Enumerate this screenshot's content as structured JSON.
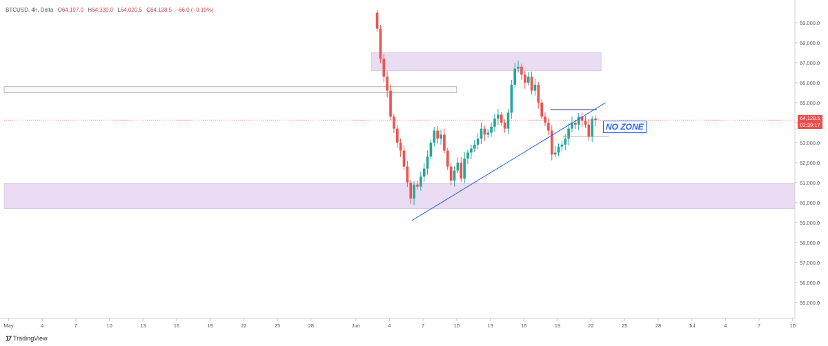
{
  "legend": {
    "symbol": "BTCUSD, 4h, Delta",
    "open_label": "O",
    "open": "64,197.0",
    "high_label": "H",
    "high": "64,339.0",
    "low_label": "L",
    "low": "64,020.5",
    "close_label": "C",
    "close": "64,128.5",
    "change": "−66.0 (−0.10%)"
  },
  "price_tag": {
    "price": "64,128.5",
    "countdown": "02:39:17"
  },
  "annotation": {
    "text": "NO ZONE"
  },
  "footer": {
    "logo": "17",
    "brand": "TradingView"
  },
  "colors": {
    "up": "#26a69a",
    "down": "#ef5350",
    "zone": "#e9dcf3",
    "trendline": "#2962ff",
    "price_tag": "#ef4d4d"
  },
  "chart_data": {
    "type": "candlestick",
    "symbol": "BTCUSD",
    "interval": "4h",
    "y_axis": {
      "ticks": [
        55000,
        56000,
        57000,
        58000,
        59000,
        60000,
        61000,
        62000,
        63000,
        64000,
        65000,
        66000,
        67000,
        68000,
        69000
      ],
      "tick_labels": [
        "55,000.0",
        "56,000.0",
        "57,000.0",
        "58,000.0",
        "59,000.0",
        "60,000.0",
        "61,000.0",
        "62,000.0",
        "63,000.0",
        "64,000.0",
        "65,000.0",
        "66,000.0",
        "67,000.0",
        "68,000.0",
        "69,000.0"
      ],
      "ylim": [
        54200,
        70000
      ]
    },
    "x_axis": {
      "ticks": [
        {
          "label": "May",
          "day": 0
        },
        {
          "label": "4",
          "day": 3
        },
        {
          "label": "7",
          "day": 6
        },
        {
          "label": "10",
          "day": 9
        },
        {
          "label": "13",
          "day": 12
        },
        {
          "label": "16",
          "day": 15
        },
        {
          "label": "19",
          "day": 18
        },
        {
          "label": "22",
          "day": 21
        },
        {
          "label": "25",
          "day": 24
        },
        {
          "label": "28",
          "day": 27
        },
        {
          "label": "Jun",
          "day": 31
        },
        {
          "label": "4",
          "day": 34
        },
        {
          "label": "7",
          "day": 37
        },
        {
          "label": "10",
          "day": 40
        },
        {
          "label": "13",
          "day": 43
        },
        {
          "label": "16",
          "day": 46
        },
        {
          "label": "19",
          "day": 49
        },
        {
          "label": "22",
          "day": 52
        },
        {
          "label": "25",
          "day": 55
        },
        {
          "label": "28",
          "day": 58
        },
        {
          "label": "Jul",
          "day": 61
        },
        {
          "label": "4",
          "day": 64
        },
        {
          "label": "7",
          "day": 67
        },
        {
          "label": "10",
          "day": 70
        }
      ],
      "xlim_days": [
        -0.4,
        70.2
      ]
    },
    "current_price": 64128.5,
    "closes": [
      [
        32.5,
        69500
      ],
      [
        32.9,
        68700
      ],
      [
        33.2,
        67200
      ],
      [
        33.5,
        66300
      ],
      [
        33.8,
        65600
      ],
      [
        34.1,
        64300
      ],
      [
        34.4,
        63700
      ],
      [
        34.7,
        63000
      ],
      [
        35.0,
        62600
      ],
      [
        35.3,
        61800
      ],
      [
        35.6,
        61000
      ],
      [
        35.9,
        60200
      ],
      [
        36.2,
        60900
      ],
      [
        36.5,
        60800
      ],
      [
        36.8,
        61300
      ],
      [
        37.1,
        61700
      ],
      [
        37.4,
        62300
      ],
      [
        37.7,
        63000
      ],
      [
        38.0,
        63600
      ],
      [
        38.3,
        63200
      ],
      [
        38.6,
        63400
      ],
      [
        38.9,
        62600
      ],
      [
        39.2,
        61800
      ],
      [
        39.5,
        61100
      ],
      [
        39.8,
        61600
      ],
      [
        40.1,
        62000
      ],
      [
        40.4,
        61200
      ],
      [
        40.7,
        62200
      ],
      [
        41.0,
        62500
      ],
      [
        41.3,
        62700
      ],
      [
        41.6,
        62900
      ],
      [
        41.9,
        63200
      ],
      [
        42.2,
        63700
      ],
      [
        42.5,
        63400
      ],
      [
        42.8,
        63500
      ],
      [
        43.1,
        63800
      ],
      [
        43.4,
        64200
      ],
      [
        43.7,
        64400
      ],
      [
        44.0,
        64000
      ],
      [
        44.3,
        63700
      ],
      [
        44.6,
        64500
      ],
      [
        44.9,
        65900
      ],
      [
        45.2,
        66700
      ],
      [
        45.5,
        66800
      ],
      [
        45.8,
        66400
      ],
      [
        46.1,
        66000
      ],
      [
        46.4,
        66300
      ],
      [
        46.7,
        65600
      ],
      [
        47.0,
        65900
      ],
      [
        47.3,
        65000
      ],
      [
        47.6,
        64300
      ],
      [
        47.9,
        64000
      ],
      [
        48.2,
        63600
      ],
      [
        48.5,
        62400
      ],
      [
        48.8,
        62500
      ],
      [
        49.1,
        62800
      ],
      [
        49.4,
        62900
      ],
      [
        49.7,
        63200
      ],
      [
        50.0,
        63700
      ],
      [
        50.3,
        64000
      ],
      [
        50.6,
        63900
      ],
      [
        50.9,
        64300
      ],
      [
        51.2,
        64100
      ],
      [
        51.5,
        63900
      ],
      [
        51.8,
        63300
      ],
      [
        52.1,
        64200
      ],
      [
        52.4,
        64128.5
      ]
    ],
    "zones": [
      {
        "from_day": 32.4,
        "to_day": 52.9,
        "low": 66600,
        "high": 67500
      },
      {
        "from_day": -0.4,
        "to_day": 70.2,
        "low": 59700,
        "high": 60950
      }
    ],
    "levels": [
      {
        "from_day": -0.4,
        "to_day": 40.0,
        "low": 65500,
        "high": 65800
      },
      {
        "from_day": 48.4,
        "to_day": 52.5,
        "price": 64650
      },
      {
        "from_day": 49.5,
        "to_day": 53.6,
        "price": 63300
      }
    ],
    "trendline": {
      "start": {
        "day": 36.0,
        "price": 59100
      },
      "end": {
        "day": 53.3,
        "price": 65000
      }
    },
    "annotation_text": "NO ZONE"
  }
}
